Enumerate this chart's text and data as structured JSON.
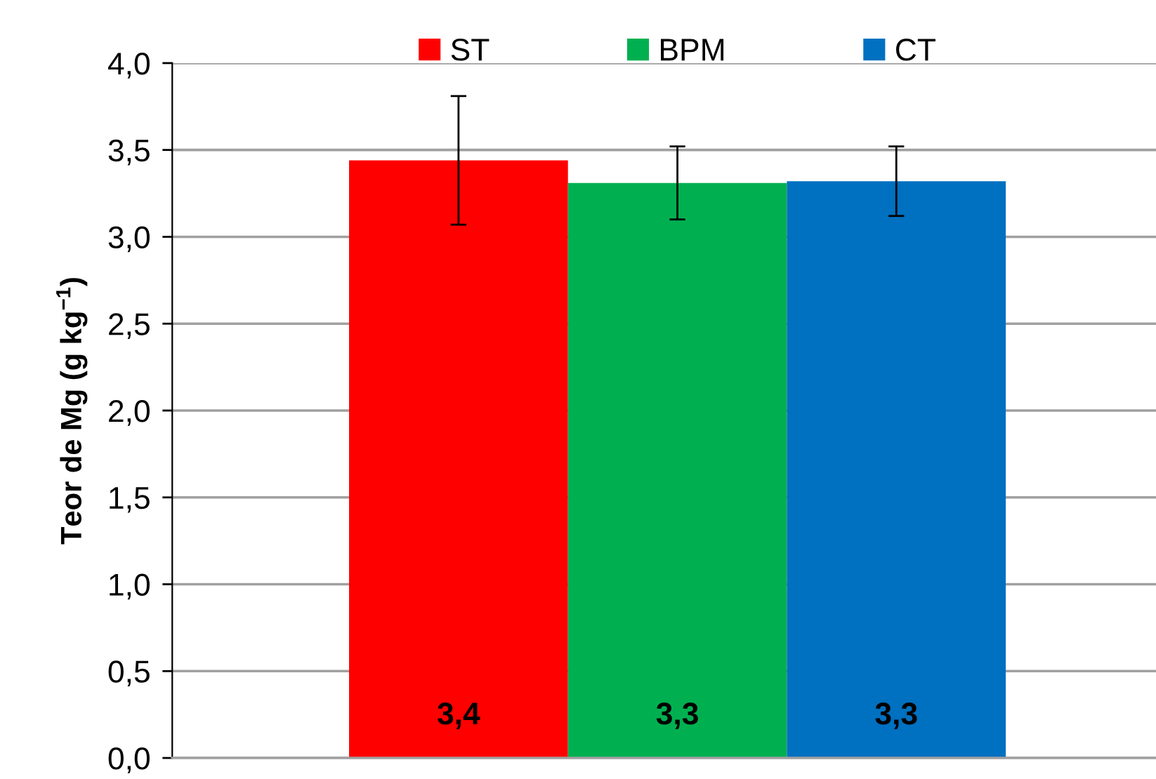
{
  "chart_data": {
    "type": "bar",
    "ylabel": "Teor de Mg (g kg$^{−1}$)",
    "categories": [
      null
    ],
    "series": [
      {
        "name": "ST",
        "color": "#ff0000",
        "values": [
          3.44
        ],
        "errors": [
          0.37
        ],
        "value_labels": [
          "3,4"
        ]
      },
      {
        "name": "BPM",
        "color": "#00b050",
        "values": [
          3.31
        ],
        "errors": [
          0.21
        ],
        "value_labels": [
          "3,3"
        ]
      },
      {
        "name": "CT",
        "color": "#0070c0",
        "values": [
          3.32
        ],
        "errors": [
          0.2
        ],
        "value_labels": [
          "3,3"
        ]
      }
    ],
    "ylim": [
      0,
      4
    ],
    "yticks": [
      {
        "value": 0,
        "label": "0,0"
      },
      {
        "value": 0.5,
        "label": "0,5"
      },
      {
        "value": 1,
        "label": "1,0"
      },
      {
        "value": 1.5,
        "label": "1,5"
      },
      {
        "value": 2,
        "label": "2,0"
      },
      {
        "value": 2.5,
        "label": "2,5"
      },
      {
        "value": 3,
        "label": "3,0"
      },
      {
        "value": 3.5,
        "label": "3,5"
      },
      {
        "value": 4,
        "label": "4,0"
      }
    ],
    "grid": "y",
    "legend": "top",
    "tick_labels": "y"
  }
}
